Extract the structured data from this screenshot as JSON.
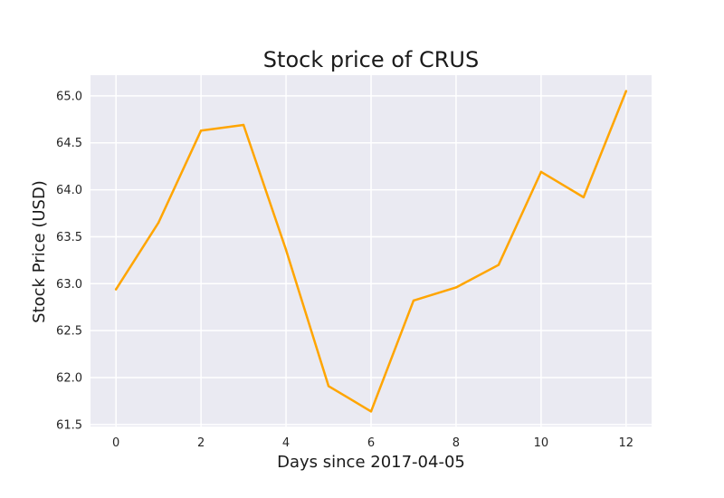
{
  "chart_data": {
    "type": "line",
    "title": "Stock price of CRUS",
    "xlabel": "Days since 2017-04-05",
    "ylabel": "Stock Price (USD)",
    "x": [
      0,
      1,
      2,
      3,
      4,
      5,
      6,
      7,
      8,
      9,
      10,
      11,
      12
    ],
    "series": [
      {
        "values": [
          62.94,
          63.65,
          64.63,
          64.69,
          63.36,
          61.91,
          61.64,
          62.82,
          62.96,
          63.2,
          64.19,
          63.92,
          65.05
        ],
        "color": "#ffa500"
      }
    ],
    "xlim": [
      -0.6,
      12.6
    ],
    "ylim": [
      61.48,
      65.22
    ],
    "xticks": [
      0,
      2,
      4,
      6,
      8,
      10,
      12
    ],
    "xtick_labels": [
      "0",
      "2",
      "4",
      "6",
      "8",
      "10",
      "12"
    ],
    "yticks": [
      61.5,
      62.0,
      62.5,
      63.0,
      63.5,
      64.0,
      64.5,
      65.0
    ],
    "ytick_labels": [
      "61.5",
      "62.0",
      "62.5",
      "63.0",
      "63.5",
      "64.0",
      "64.5",
      "65.0"
    ],
    "grid": true,
    "style": {
      "plot_background": "#eaeaf2",
      "grid_color": "#ffffff"
    }
  }
}
